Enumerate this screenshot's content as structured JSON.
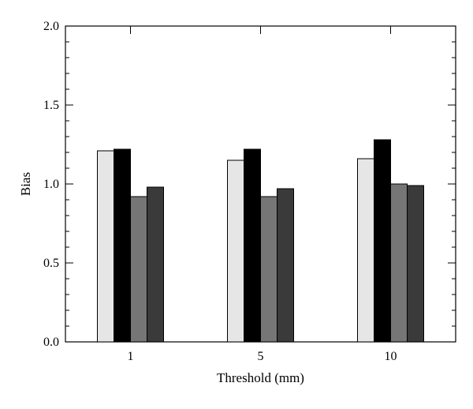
{
  "chart_data": {
    "type": "bar",
    "title": "",
    "xlabel": "Threshold (mm)",
    "ylabel": "Bias",
    "ylim": [
      0,
      2.0
    ],
    "yticks": [
      "0.0",
      "0.5",
      "1.0",
      "1.5",
      "2.0"
    ],
    "categories": [
      "1",
      "5",
      "10"
    ],
    "grid": false,
    "legend": "none",
    "series": [
      {
        "color": "#e6e6e6",
        "values": [
          1.21,
          1.15,
          1.16
        ]
      },
      {
        "color": "#000000",
        "values": [
          1.22,
          1.22,
          1.28
        ]
      },
      {
        "color": "#767676",
        "values": [
          0.92,
          0.92,
          1.0
        ]
      },
      {
        "color": "#3a3a3a",
        "values": [
          0.98,
          0.97,
          0.99
        ]
      }
    ]
  }
}
